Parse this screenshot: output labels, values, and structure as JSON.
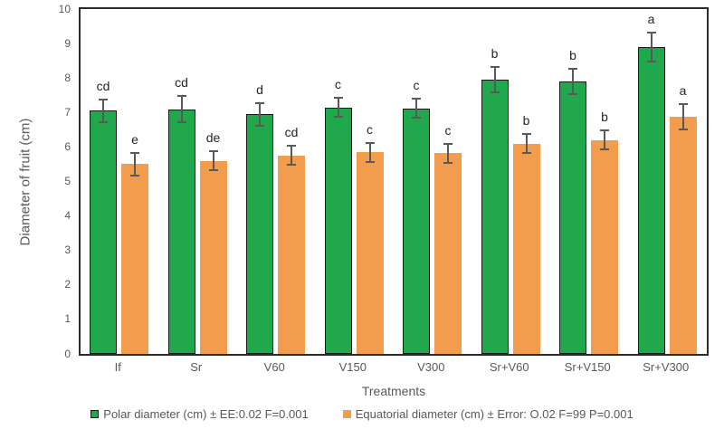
{
  "chart_data": {
    "type": "bar",
    "title": "",
    "xlabel": "Treatments",
    "ylabel": "Diameter of fruit (cm)",
    "ylim": [
      0,
      10
    ],
    "ytick_step": 1,
    "grid": false,
    "legend_position": "bottom",
    "categories": [
      "If",
      "Sr",
      "V60",
      "V150",
      "V300",
      "Sr+V60",
      "Sr+V150",
      "Sr+V300"
    ],
    "series": [
      {
        "name": "Polar diameter (cm) ± EE:0.02 F=0.001",
        "color": "#21A84D",
        "border_color": "#1a1a1a",
        "values": [
          7.05,
          7.1,
          6.95,
          7.15,
          7.12,
          7.95,
          7.9,
          8.9
        ],
        "errors": [
          0.35,
          0.4,
          0.35,
          0.3,
          0.3,
          0.4,
          0.4,
          0.45
        ],
        "letters": [
          "cd",
          "cd",
          "d",
          "c",
          "c",
          "b",
          "b",
          "a"
        ]
      },
      {
        "name": "Equatorial diameter (cm) ± Error: O.02 F=99 P=0.001",
        "color": "#F29D4E",
        "border_color": "",
        "values": [
          5.5,
          5.6,
          5.75,
          5.85,
          5.82,
          6.1,
          6.2,
          6.88
        ],
        "errors": [
          0.35,
          0.3,
          0.3,
          0.3,
          0.3,
          0.3,
          0.3,
          0.4
        ],
        "letters": [
          "e",
          "de",
          "cd",
          "c",
          "c",
          "b",
          "b",
          "a"
        ]
      }
    ],
    "error_bar_color": "#595959",
    "axis_color": "#2b2b2b",
    "tick_label_color": "#595959",
    "letter_color": "#262626"
  }
}
